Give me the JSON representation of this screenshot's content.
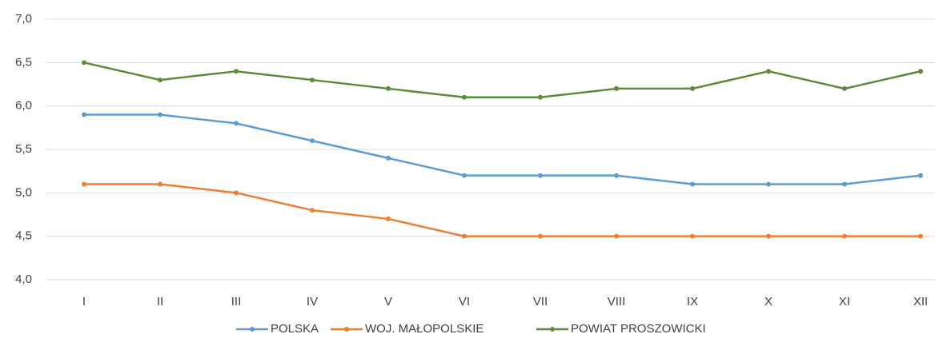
{
  "chart_data": {
    "type": "line",
    "categories": [
      "I",
      "II",
      "III",
      "IV",
      "V",
      "VI",
      "VII",
      "VIII",
      "IX",
      "X",
      "XI",
      "XII"
    ],
    "series": [
      {
        "name": "POLSKA",
        "color": "#5b9bd5",
        "values": [
          5.9,
          5.9,
          5.8,
          5.6,
          5.4,
          5.2,
          5.2,
          5.2,
          5.1,
          5.1,
          5.1,
          5.2
        ]
      },
      {
        "name": "WOJ. MAŁOPOLSKIE",
        "color": "#ed7d31",
        "values": [
          5.1,
          5.1,
          5.0,
          4.8,
          4.7,
          4.5,
          4.5,
          4.5,
          4.5,
          4.5,
          4.5,
          4.5
        ]
      },
      {
        "name": "POWIAT PROSZOWICKI",
        "color": "#5b8c3a",
        "values": [
          6.5,
          6.3,
          6.4,
          6.3,
          6.2,
          6.1,
          6.1,
          6.2,
          6.2,
          6.4,
          6.2,
          6.4
        ]
      }
    ],
    "ylim": [
      4,
      7
    ],
    "yticks": [
      {
        "value": 4,
        "label": "4,0"
      },
      {
        "value": 4.5,
        "label": "4,5"
      },
      {
        "value": 5,
        "label": "5,0"
      },
      {
        "value": 5.5,
        "label": "5,5"
      },
      {
        "value": 6,
        "label": "6,0"
      },
      {
        "value": 6.5,
        "label": "6,5"
      },
      {
        "value": 7,
        "label": "7,0"
      }
    ],
    "grid": true,
    "legend": "bottom"
  }
}
